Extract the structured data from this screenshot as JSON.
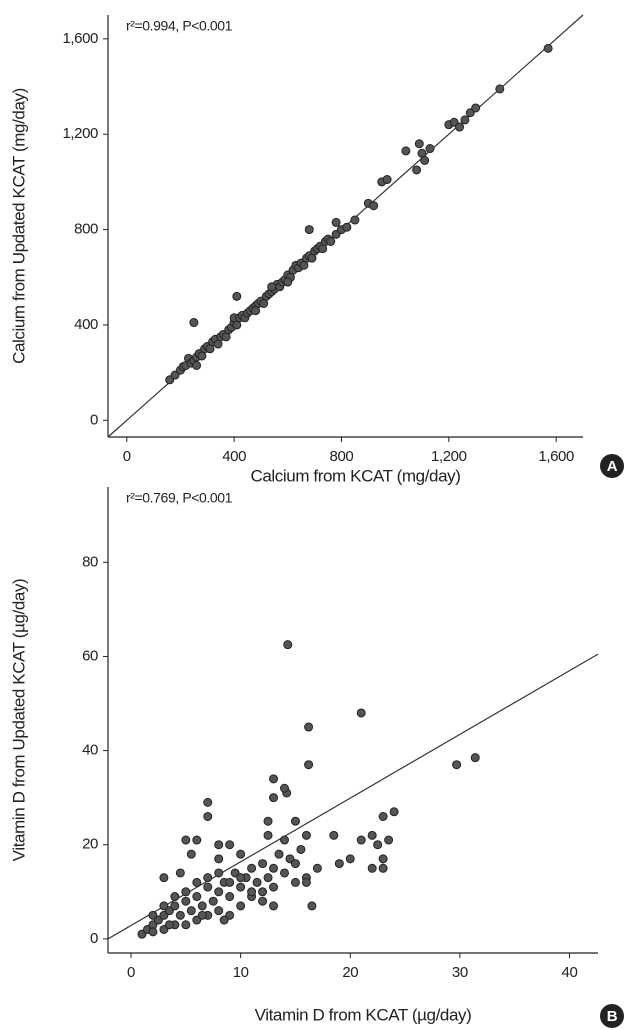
{
  "chart_data": [
    {
      "type": "scatter",
      "panel_label": "A",
      "annotation": "r²=0.994, P<0.001",
      "x_label": "Calcium from KCAT (mg/day)",
      "y_label": "Calcium from Updated KCAT (mg/day)",
      "xlim": [
        -70,
        1700
      ],
      "ylim": [
        -70,
        1700
      ],
      "xticks": [
        0,
        400,
        800,
        {
          "value": 1200,
          "label": "1,200"
        },
        {
          "value": 1600,
          "label": "1,600"
        }
      ],
      "yticks": [
        0,
        400,
        800,
        {
          "value": 1200,
          "label": "1,200"
        },
        {
          "value": 1600,
          "label": "1,600"
        }
      ],
      "color": "#555555",
      "fit_line": {
        "x": [
          -70,
          1700
        ],
        "y": [
          -70,
          1700
        ]
      },
      "x": [
        160,
        180,
        200,
        210,
        220,
        230,
        240,
        250,
        250,
        260,
        270,
        280,
        290,
        300,
        310,
        320,
        330,
        340,
        350,
        360,
        370,
        380,
        390,
        400,
        400,
        410,
        420,
        430,
        440,
        450,
        460,
        470,
        480,
        490,
        500,
        510,
        520,
        530,
        540,
        550,
        560,
        570,
        580,
        590,
        600,
        610,
        620,
        630,
        640,
        650,
        660,
        670,
        680,
        690,
        700,
        710,
        720,
        730,
        740,
        750,
        760,
        780,
        800,
        820,
        850,
        900,
        920,
        950,
        970,
        1040,
        1080,
        1090,
        1100,
        1110,
        1130,
        1200,
        1220,
        1240,
        1260,
        1280,
        1300,
        1390,
        1570,
        410,
        680,
        260,
        600,
        540,
        480,
        780
      ],
      "values": [
        170,
        190,
        210,
        225,
        230,
        260,
        240,
        250,
        410,
        265,
        280,
        270,
        300,
        310,
        300,
        330,
        340,
        320,
        350,
        360,
        350,
        380,
        390,
        410,
        430,
        400,
        430,
        440,
        430,
        450,
        460,
        470,
        480,
        490,
        500,
        490,
        520,
        530,
        540,
        550,
        570,
        560,
        580,
        590,
        610,
        600,
        630,
        650,
        640,
        660,
        650,
        680,
        690,
        680,
        710,
        720,
        730,
        720,
        750,
        760,
        750,
        780,
        800,
        810,
        840,
        910,
        900,
        1000,
        1010,
        1130,
        1050,
        1160,
        1120,
        1090,
        1140,
        1240,
        1250,
        1230,
        1260,
        1290,
        1310,
        1390,
        1560,
        520,
        800,
        230,
        580,
        560,
        460,
        830
      ]
    },
    {
      "type": "scatter",
      "panel_label": "B",
      "annotation": "r²=0.769, P<0.001",
      "x_label": "Vitamin D from KCAT (µg/day)",
      "y_label": "Vitamin D from Updated KCAT (µg/day)",
      "xlim": [
        -2.1,
        42.6
      ],
      "ylim": [
        -3,
        96
      ],
      "xticks": [
        0,
        10,
        20,
        30,
        40
      ],
      "yticks": [
        0,
        20,
        40,
        60,
        80
      ],
      "color": "#555555",
      "fit_line": {
        "x": [
          -2.1,
          42.6
        ],
        "y": [
          0,
          60.5
        ]
      },
      "x": [
        1,
        1.5,
        2,
        2,
        2.5,
        3,
        3,
        3.5,
        4,
        4,
        4.5,
        5,
        5,
        5.5,
        6,
        6,
        6.5,
        7,
        7,
        7.5,
        8,
        8,
        8.5,
        9,
        9,
        9.5,
        10,
        10,
        10.5,
        11,
        11.5,
        12,
        12,
        12.5,
        13,
        13,
        13.5,
        14,
        14,
        14.5,
        15,
        15,
        15.5,
        16,
        16,
        16.2,
        16.2,
        16.5,
        14.3,
        14.2,
        14,
        13,
        13,
        12.5,
        12.5,
        7,
        7,
        5,
        5.5,
        4.5,
        3,
        6,
        8,
        9,
        10,
        8,
        18.5,
        19,
        20,
        21,
        21,
        22,
        22,
        22.5,
        23,
        23,
        23,
        23.5,
        24,
        29.7,
        31.4,
        2,
        3,
        4,
        5,
        6,
        7,
        8,
        9,
        10,
        11,
        12,
        13,
        15,
        16,
        17,
        11,
        3.5,
        6.5,
        8.5
      ],
      "values": [
        1,
        2,
        3,
        1.5,
        4,
        2,
        5,
        6,
        3,
        7,
        5,
        8,
        3,
        6,
        9,
        4,
        7,
        11,
        5,
        8,
        10,
        6,
        12,
        9,
        5,
        14,
        11,
        7,
        13,
        9,
        12,
        10,
        16,
        13,
        15,
        11,
        18,
        14,
        21,
        17,
        12,
        25,
        19,
        13,
        22,
        37,
        45,
        7,
        62.5,
        31,
        32,
        34,
        30,
        25,
        22,
        29,
        26,
        21,
        18,
        14,
        13,
        21,
        20,
        20,
        18,
        17,
        22,
        16,
        17,
        48,
        21,
        15,
        22,
        20,
        26,
        17,
        15,
        21,
        27,
        37,
        38.5,
        5,
        7,
        9,
        10,
        12,
        13,
        14,
        12,
        13,
        10,
        8,
        7,
        16,
        12,
        15,
        15,
        3,
        5,
        4
      ]
    }
  ]
}
